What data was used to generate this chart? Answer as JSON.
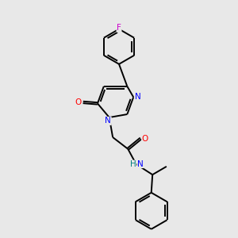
{
  "background_color": "#e8e8e8",
  "bond_color": "#000000",
  "atom_colors": {
    "N": "#0000ff",
    "O": "#ff0000",
    "F": "#cc00cc",
    "H": "#008080",
    "C": "#000000"
  },
  "figsize": [
    3.0,
    3.0
  ],
  "dpi": 100
}
